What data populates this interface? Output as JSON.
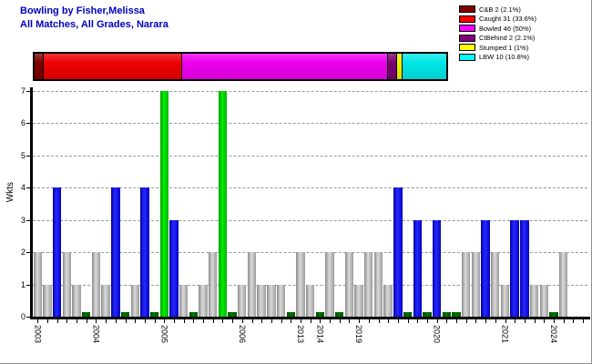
{
  "header": {
    "title": "Bowling by Fisher,Melissa",
    "subtitle": "All Matches, All Grades, Narara",
    "title_color": "#0000C0"
  },
  "legend": {
    "position": "top-right",
    "items": [
      {
        "label": "C&B 2 (2.1%)",
        "color": "#800000"
      },
      {
        "label": "Caught 31 (33.6%)",
        "color": "#ff0000"
      },
      {
        "label": "Bowled 46 (50%)",
        "color": "#ff00ff"
      },
      {
        "label": "CtBehind 2 (2.1%)",
        "color": "#800080"
      },
      {
        "label": "Stumped 1 (1%)",
        "color": "#ffff00"
      },
      {
        "label": "LBW 10 (10.8%)",
        "color": "#00ffff"
      }
    ]
  },
  "chart_data": [
    {
      "type": "bar",
      "variant": "horizontal-stacked",
      "title": "Dismissal type breakdown",
      "segments": [
        {
          "label": "C&B",
          "count": 2,
          "pct": 2.1,
          "color": "#800000"
        },
        {
          "label": "Caught",
          "count": 31,
          "pct": 33.6,
          "color": "#ee0000"
        },
        {
          "label": "Bowled",
          "count": 46,
          "pct": 50,
          "color": "#ee00ee"
        },
        {
          "label": "CtBehind",
          "count": 2,
          "pct": 2.1,
          "color": "#77006f"
        },
        {
          "label": "Stumped",
          "count": 1,
          "pct": 1,
          "color": "#f2f200"
        },
        {
          "label": "LBW",
          "count": 10,
          "pct": 10.8,
          "color": "#00e6e6"
        }
      ]
    },
    {
      "type": "bar",
      "title": "Wickets per match by season",
      "ylabel": "Wkts",
      "ylim": [
        0,
        7
      ],
      "yticks": [
        0,
        1,
        2,
        3,
        4,
        5,
        6,
        7
      ],
      "grid": "dashed horizontal",
      "bar_color_legend": {
        "g": "gray",
        "b": "blue",
        "G": "bright-green",
        "d": "dark-green-stub"
      },
      "groups": [
        {
          "year": "2003",
          "bars": [
            [
              2,
              "g"
            ],
            [
              1,
              "g"
            ],
            [
              4,
              "b"
            ],
            [
              2,
              "g"
            ],
            [
              1,
              "g"
            ],
            [
              0.15,
              "d"
            ]
          ]
        },
        {
          "year": "2004",
          "bars": [
            [
              2,
              "g"
            ],
            [
              1,
              "g"
            ],
            [
              4,
              "b"
            ],
            [
              0.15,
              "d"
            ],
            [
              1,
              "g"
            ],
            [
              4,
              "b"
            ],
            [
              0.15,
              "d"
            ]
          ]
        },
        {
          "year": "2005",
          "bars": [
            [
              7,
              "G"
            ],
            [
              3,
              "b"
            ],
            [
              1,
              "g"
            ],
            [
              0.15,
              "d"
            ],
            [
              1,
              "g"
            ],
            [
              2,
              "g"
            ],
            [
              7,
              "G"
            ],
            [
              0.15,
              "d"
            ]
          ]
        },
        {
          "year": "2006",
          "bars": [
            [
              1,
              "g"
            ],
            [
              2,
              "g"
            ],
            [
              1,
              "g"
            ],
            [
              1,
              "g"
            ],
            [
              1,
              "g"
            ],
            [
              0.15,
              "d"
            ]
          ]
        },
        {
          "year": "2013",
          "bars": [
            [
              2,
              "g"
            ],
            [
              1,
              "g"
            ]
          ]
        },
        {
          "year": "2014",
          "bars": [
            [
              0.15,
              "d"
            ],
            [
              2,
              "g"
            ],
            [
              0.15,
              "d"
            ],
            [
              2,
              "g"
            ]
          ]
        },
        {
          "year": "2019",
          "bars": [
            [
              1,
              "g"
            ],
            [
              2,
              "g"
            ],
            [
              2,
              "g"
            ],
            [
              1,
              "g"
            ],
            [
              4,
              "b"
            ],
            [
              0.15,
              "d"
            ],
            [
              3,
              "b"
            ],
            [
              0.15,
              "d"
            ]
          ]
        },
        {
          "year": "2020",
          "bars": [
            [
              3,
              "b"
            ],
            [
              0.15,
              "d"
            ],
            [
              0.15,
              "d"
            ],
            [
              2,
              "g"
            ],
            [
              2,
              "g"
            ],
            [
              3,
              "b"
            ],
            [
              2,
              "g"
            ]
          ]
        },
        {
          "year": "2021",
          "bars": [
            [
              1,
              "g"
            ],
            [
              3,
              "b"
            ],
            [
              3,
              "b"
            ],
            [
              1,
              "g"
            ],
            [
              1,
              "g"
            ]
          ]
        },
        {
          "year": "2024",
          "bars": [
            [
              0.15,
              "d"
            ],
            [
              2,
              "g"
            ]
          ]
        }
      ]
    }
  ]
}
